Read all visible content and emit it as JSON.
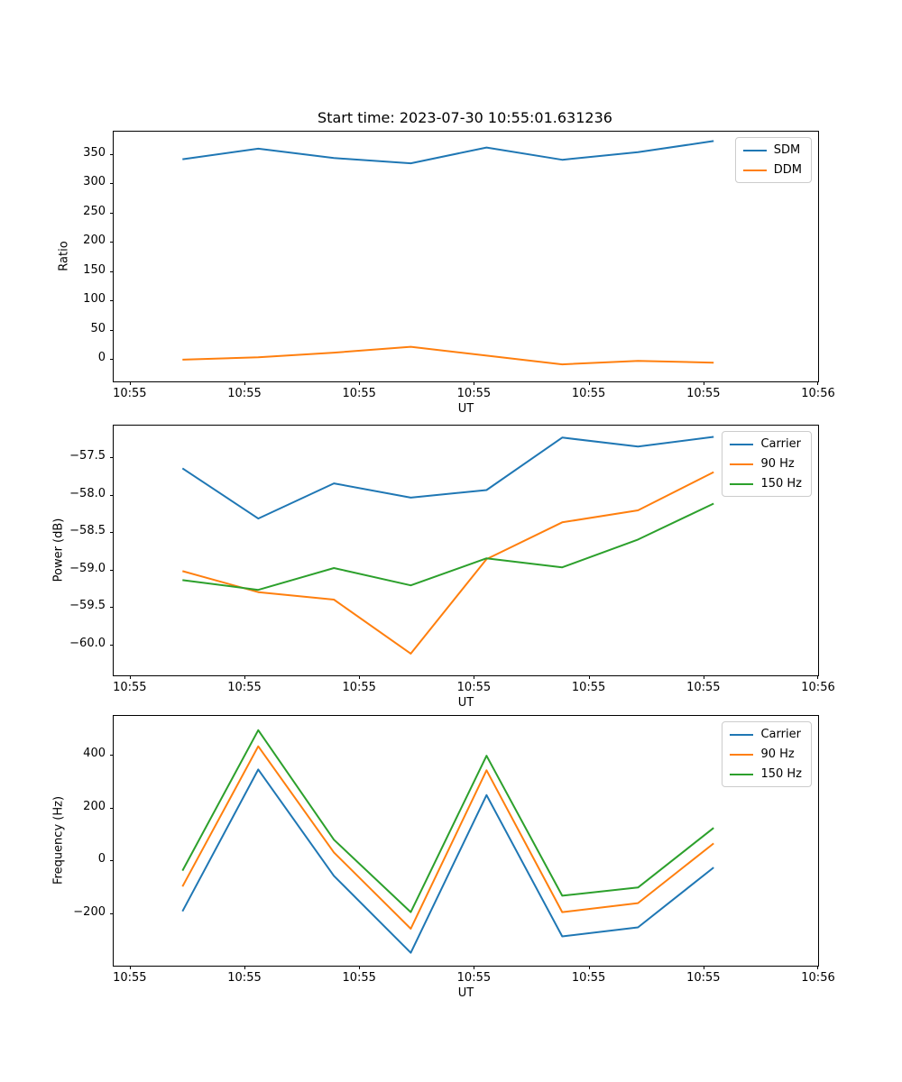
{
  "figure": {
    "title": "Start time: 2023-07-30 10:55:01.631236",
    "background": "#ffffff"
  },
  "colors": {
    "blue": "#1f77b4",
    "orange": "#ff7f0e",
    "green": "#2ca02c",
    "spine": "#000000",
    "legend_border": "#cccccc"
  },
  "chart_data": [
    {
      "type": "line",
      "title": "Start time: 2023-07-30 10:55:01.631236",
      "xlabel": "UT",
      "ylabel": "Ratio",
      "x_unit": "seconds after 10:55:00 UT",
      "x": [
        4.6,
        11.2,
        17.8,
        24.5,
        31.1,
        37.7,
        44.3,
        50.9
      ],
      "xlim": [
        -1.4,
        60
      ],
      "xtick_values": [
        0,
        10,
        20,
        30,
        40,
        50,
        60
      ],
      "xtick_labels": [
        "10:55",
        "10:55",
        "10:55",
        "10:55",
        "10:55",
        "10:55",
        "10:56"
      ],
      "ylim": [
        -38,
        388
      ],
      "ytick_values": [
        0,
        50,
        100,
        150,
        200,
        250,
        300,
        350
      ],
      "ytick_labels": [
        "0",
        "50",
        "100",
        "150",
        "200",
        "250",
        "300",
        "350"
      ],
      "grid": false,
      "legend_position": "upper right",
      "series": [
        {
          "name": "SDM",
          "color": "#1f77b4",
          "values": [
            341,
            359,
            343,
            334,
            361,
            340,
            353,
            372
          ]
        },
        {
          "name": "DDM",
          "color": "#ff7f0e",
          "values": [
            -1,
            3,
            11,
            21,
            6,
            -9,
            -3,
            -6
          ]
        }
      ]
    },
    {
      "type": "line",
      "title": "",
      "xlabel": "UT",
      "ylabel": "Power (dB)",
      "x_unit": "seconds after 10:55:00 UT",
      "x": [
        4.6,
        11.2,
        17.8,
        24.5,
        31.1,
        37.7,
        44.3,
        50.9
      ],
      "xlim": [
        -1.4,
        60
      ],
      "xtick_values": [
        0,
        10,
        20,
        30,
        40,
        50,
        60
      ],
      "xtick_labels": [
        "10:55",
        "10:55",
        "10:55",
        "10:55",
        "10:55",
        "10:55",
        "10:56"
      ],
      "ylim": [
        -60.41,
        -57.08
      ],
      "ytick_values": [
        -60.0,
        -59.5,
        -59.0,
        -58.5,
        -58.0,
        -57.5
      ],
      "ytick_labels": [
        "−60.0",
        "−59.5",
        "−59.0",
        "−58.5",
        "−58.0",
        "−57.5"
      ],
      "grid": false,
      "legend_position": "upper right",
      "series": [
        {
          "name": "Carrier",
          "color": "#1f77b4",
          "values": [
            -57.65,
            -58.32,
            -57.85,
            -58.04,
            -57.94,
            -57.24,
            -57.36,
            -57.23
          ]
        },
        {
          "name": "90 Hz",
          "color": "#ff7f0e",
          "values": [
            -59.02,
            -59.3,
            -59.4,
            -60.12,
            -58.86,
            -58.37,
            -58.21,
            -57.7
          ]
        },
        {
          "name": "150 Hz",
          "color": "#2ca02c",
          "values": [
            -59.14,
            -59.27,
            -58.98,
            -59.21,
            -58.85,
            -58.97,
            -58.6,
            -58.12
          ]
        }
      ]
    },
    {
      "type": "line",
      "title": "",
      "xlabel": "UT",
      "ylabel": "Frequency (Hz)",
      "x_unit": "seconds after 10:55:00 UT",
      "x": [
        4.6,
        11.2,
        17.8,
        24.5,
        31.1,
        37.7,
        44.3,
        50.9
      ],
      "xlim": [
        -1.4,
        60
      ],
      "xtick_values": [
        0,
        10,
        20,
        30,
        40,
        50,
        60
      ],
      "xtick_labels": [
        "10:55",
        "10:55",
        "10:55",
        "10:55",
        "10:55",
        "10:55",
        "10:56"
      ],
      "ylim": [
        -399,
        547
      ],
      "ytick_values": [
        -200,
        0,
        200,
        400
      ],
      "ytick_labels": [
        "−200",
        "0",
        "200",
        "400"
      ],
      "grid": false,
      "legend_position": "upper right",
      "series": [
        {
          "name": "Carrier",
          "color": "#1f77b4",
          "values": [
            -193,
            344,
            -59,
            -350,
            247,
            -288,
            -254,
            -27
          ]
        },
        {
          "name": "90 Hz",
          "color": "#ff7f0e",
          "values": [
            -99,
            432,
            30,
            -259,
            341,
            -196,
            -162,
            64
          ]
        },
        {
          "name": "150 Hz",
          "color": "#2ca02c",
          "values": [
            -39,
            493,
            78,
            -196,
            396,
            -134,
            -103,
            123
          ]
        }
      ]
    }
  ]
}
